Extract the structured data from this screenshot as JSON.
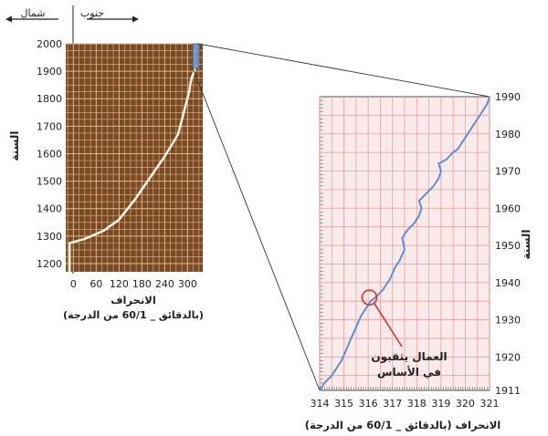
{
  "header": {
    "south_label": "جنوب",
    "north_label": "شمال"
  },
  "colors": {
    "left_bg": "#7a4a25",
    "left_grid": "#e0b98a",
    "left_line": "#fff5e6",
    "right_bg": "#fbeaea",
    "right_grid": "#e8a0a0",
    "right_line": "#5b8fd6",
    "callout": "#e0302a",
    "zoom_box": "#6fa6e8"
  },
  "chart_data": [
    {
      "type": "line",
      "ylabel": "السنة",
      "xlabel": "الانحراف",
      "xlabel_sub": "(بالدقائق _ 60/1 من الدرجة)",
      "x_ticks": [
        "0",
        "60",
        "120",
        "180",
        "240",
        "300"
      ],
      "y_ticks": [
        "1200",
        "1300",
        "1400",
        "1500",
        "1600",
        "1700",
        "1800",
        "1900",
        "2000"
      ],
      "xlim": [
        -20,
        340
      ],
      "ylim": [
        1170,
        2000
      ],
      "grid": true,
      "series": [
        {
          "x": [
            -10,
            -10,
            -10,
            30,
            80,
            120,
            160,
            200,
            240,
            275,
            292,
            305,
            308,
            312,
            318,
            321
          ],
          "y": [
            1170,
            1200,
            1275,
            1290,
            1320,
            1360,
            1430,
            1510,
            1590,
            1670,
            1760,
            1830,
            1860,
            1880,
            1900,
            1920
          ]
        }
      ],
      "zoom_region": {
        "x": [
          314,
          321
        ],
        "y": [
          1911,
          1990
        ]
      }
    },
    {
      "type": "line",
      "ylabel": "السنة",
      "xlabel": "الانحراف (بالدقائق _ 60/1 من الدرجة)",
      "x_ticks": [
        "314",
        "315",
        "316",
        "317",
        "318",
        "319",
        "320",
        "321"
      ],
      "y_ticks": [
        "1911",
        "1920",
        "1930",
        "1940",
        "1950",
        "1960",
        "1970",
        "1980",
        "1990"
      ],
      "xlim": [
        314,
        321
      ],
      "ylim": [
        1911,
        1990
      ],
      "grid": true,
      "series": [
        {
          "x": [
            314.0,
            314.2,
            314.5,
            314.7,
            314.9,
            315.1,
            315.3,
            315.5,
            315.7,
            315.9,
            316.1,
            316.3,
            316.6,
            316.9,
            317.1,
            317.3,
            317.5,
            317.4,
            317.6,
            317.9,
            318.1,
            318.2,
            318.1,
            318.4,
            318.7,
            318.9,
            319.0,
            318.9,
            319.2,
            319.5,
            319.7,
            319.9,
            320.1,
            320.3,
            320.5,
            320.7,
            320.9,
            321.0
          ],
          "y": [
            1911,
            1913,
            1915,
            1917,
            1919,
            1922,
            1925,
            1928,
            1931,
            1933,
            1935,
            1936,
            1938,
            1941,
            1944,
            1946,
            1949,
            1952,
            1954,
            1956,
            1958,
            1960,
            1962,
            1964,
            1966,
            1968,
            1970,
            1972,
            1973,
            1975,
            1976,
            1978,
            1980,
            1982,
            1984,
            1986,
            1988,
            1990
          ]
        }
      ],
      "annotation": {
        "text_line1": "العمال يثقبون",
        "text_line2": "في الأساس",
        "x": 316.05,
        "y": 1936
      }
    }
  ]
}
